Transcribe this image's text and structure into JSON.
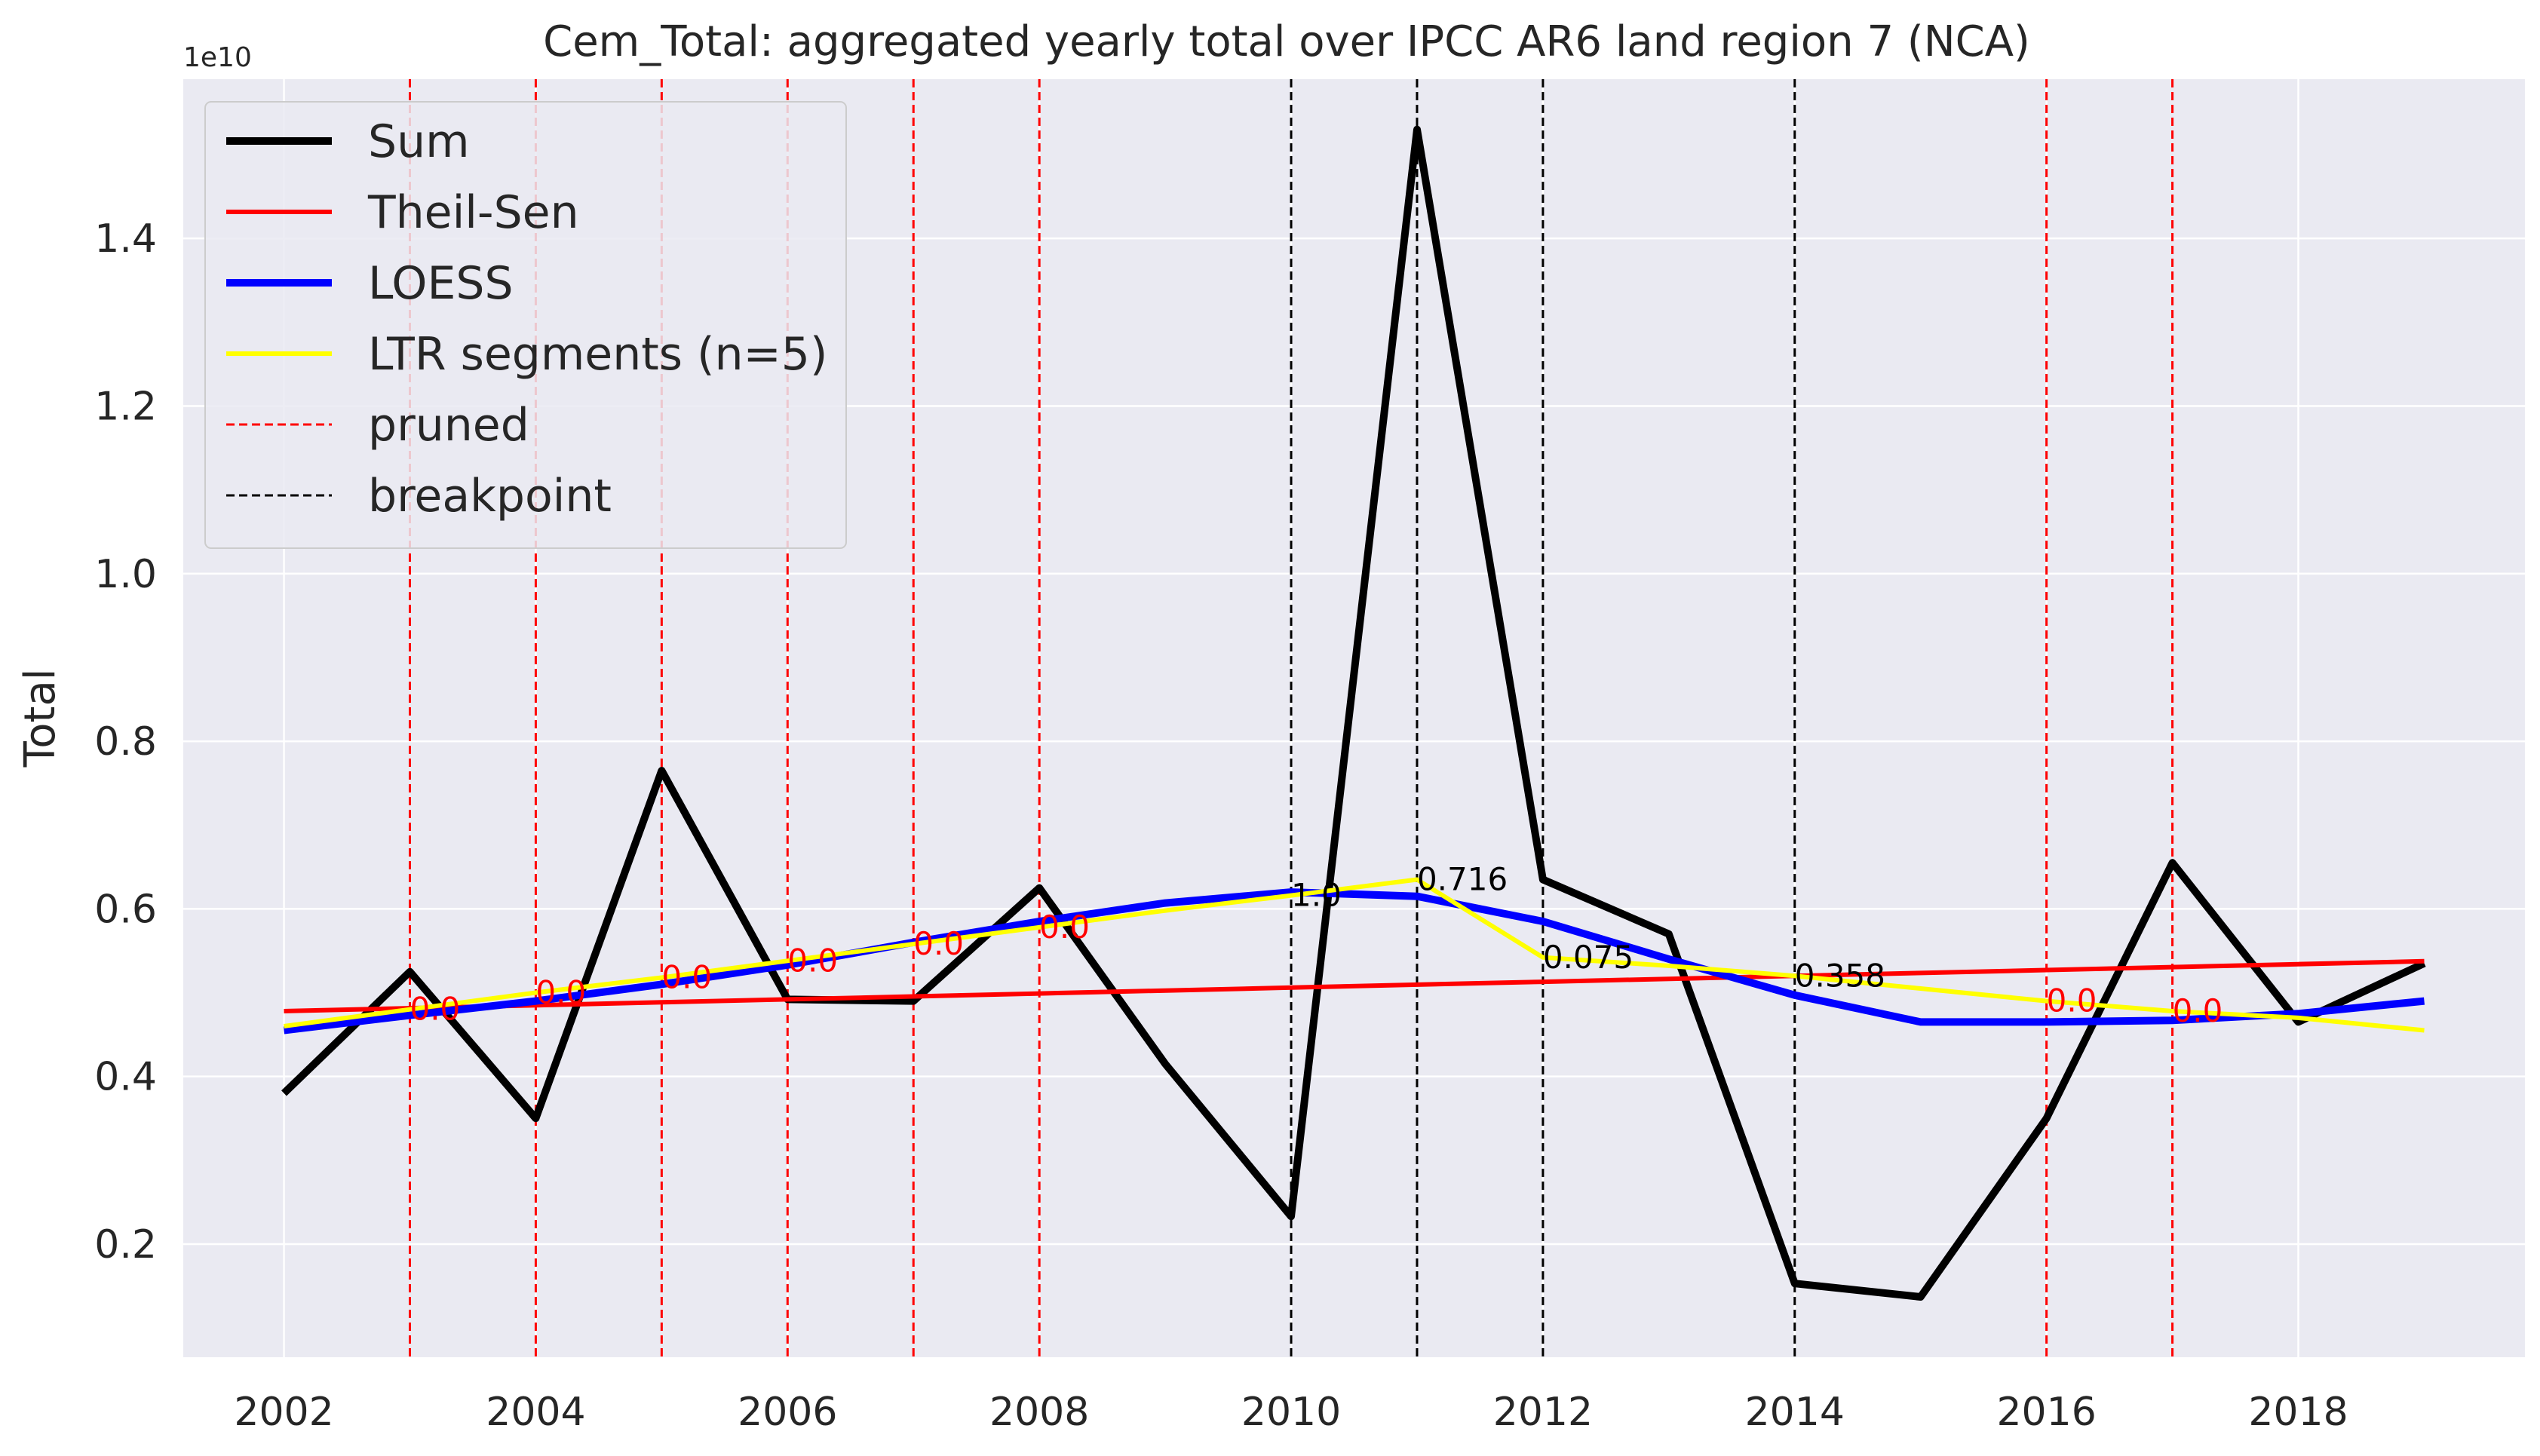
{
  "chart_data": {
    "type": "line",
    "title": "Cem_Total: aggregated yearly total over IPCC AR6 land region 7 (NCA)",
    "xlabel": "",
    "ylabel": "Total",
    "y_offset_label": "1e10",
    "xlim": [
      2001.2,
      2019.8
    ],
    "ylim": [
      0.065,
      1.59
    ],
    "x_ticks": [
      2002,
      2004,
      2006,
      2008,
      2010,
      2012,
      2014,
      2016,
      2018
    ],
    "y_ticks": [
      0.2,
      0.4,
      0.6,
      0.8,
      1.0,
      1.2,
      1.4
    ],
    "y_tick_labels": [
      "0.2",
      "0.4",
      "0.6",
      "0.8",
      "1.0",
      "1.2",
      "1.4"
    ],
    "grid": true,
    "background": "#eaeaf2",
    "legend_position": "top-left",
    "x": [
      2002,
      2003,
      2004,
      2005,
      2006,
      2007,
      2008,
      2009,
      2010,
      2011,
      2012,
      2013,
      2014,
      2015,
      2016,
      2017,
      2018,
      2019
    ],
    "series": [
      {
        "name": "Sum",
        "color": "#000000",
        "values": [
          0.38,
          0.525,
          0.35,
          0.765,
          0.492,
          0.49,
          0.625,
          0.415,
          0.233,
          1.53,
          0.635,
          0.57,
          0.153,
          0.137,
          0.35,
          0.655,
          0.465,
          0.535
        ]
      },
      {
        "name": "Theil-Sen",
        "color": "#ff0000",
        "values": [
          0.478,
          0.4815,
          0.485,
          0.4885,
          0.492,
          0.4955,
          0.499,
          0.5025,
          0.506,
          0.5095,
          0.513,
          0.5165,
          0.52,
          0.5235,
          0.527,
          0.5305,
          0.534,
          0.5375
        ]
      },
      {
        "name": "LOESS",
        "color": "#0000ff",
        "values": [
          0.455,
          0.473,
          0.49,
          0.51,
          0.533,
          0.56,
          0.585,
          0.607,
          0.62,
          0.615,
          0.585,
          0.54,
          0.497,
          0.465,
          0.465,
          0.467,
          0.475,
          0.49
        ]
      },
      {
        "name": "LTR segments (n=5)",
        "color": "#ffff00",
        "values": [
          0.46,
          0.48,
          0.5,
          0.518,
          0.538,
          0.558,
          0.578,
          0.598,
          0.616,
          0.635,
          0.542,
          0.532,
          0.52,
          0.505,
          0.49,
          0.478,
          0.47,
          0.455
        ]
      }
    ],
    "pruned_years": [
      2003,
      2004,
      2005,
      2006,
      2007,
      2008,
      2016,
      2017
    ],
    "breakpoint_years": [
      2010,
      2011,
      2012,
      2014
    ],
    "legend_extra": [
      {
        "name": "pruned",
        "color": "#ff0000"
      },
      {
        "name": "breakpoint",
        "color": "#000000"
      }
    ],
    "annotations": [
      {
        "text": "0.0",
        "x": 2003,
        "y": 0.48,
        "color": "#ff0000"
      },
      {
        "text": "0.0",
        "x": 2004,
        "y": 0.5,
        "color": "#ff0000"
      },
      {
        "text": "0.0",
        "x": 2005,
        "y": 0.518,
        "color": "#ff0000"
      },
      {
        "text": "0.0",
        "x": 2006,
        "y": 0.538,
        "color": "#ff0000"
      },
      {
        "text": "0.0",
        "x": 2007,
        "y": 0.558,
        "color": "#ff0000"
      },
      {
        "text": "0.0",
        "x": 2008,
        "y": 0.578,
        "color": "#ff0000"
      },
      {
        "text": "1.0",
        "x": 2010,
        "y": 0.616,
        "color": "#000000"
      },
      {
        "text": "0.716",
        "x": 2011,
        "y": 0.635,
        "color": "#000000"
      },
      {
        "text": "0.075",
        "x": 2012,
        "y": 0.542,
        "color": "#000000"
      },
      {
        "text": "0.358",
        "x": 2014,
        "y": 0.52,
        "color": "#000000"
      },
      {
        "text": "0.0",
        "x": 2016,
        "y": 0.49,
        "color": "#ff0000"
      },
      {
        "text": "0.0",
        "x": 2017,
        "y": 0.478,
        "color": "#ff0000"
      }
    ]
  }
}
